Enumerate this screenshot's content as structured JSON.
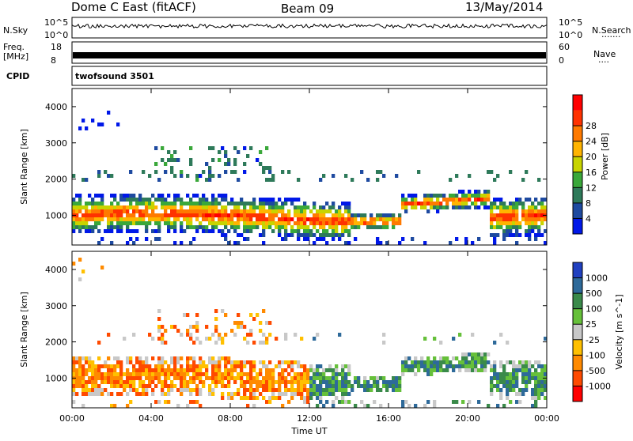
{
  "header": {
    "station": "Dome C East (fitACF)",
    "beam": "Beam 09",
    "date": "13/May/2014"
  },
  "strips": {
    "nsky_label": "N.Sky",
    "nsky_ticks": [
      "10^5",
      "10^0"
    ],
    "nsearch_label": "N.Search",
    "nsearch_ticks": [
      "10^5",
      "10^0"
    ],
    "freq_label": "Freq.",
    "freq_unit": "[MHz]",
    "freq_ticks": [
      "18",
      "8"
    ],
    "nave_label": "Nave",
    "nave_ticks": [
      "60",
      "0"
    ],
    "cpid_label": "CPID",
    "cpid_value": "twofsound 3501"
  },
  "chart_data": [
    {
      "type": "heatmap",
      "name_panel": "power",
      "ylabel": "Slant Range [km]",
      "xlabel": "Time UT",
      "x_ticks": [
        "00:00",
        "04:00",
        "08:00",
        "12:00",
        "16:00",
        "20:00",
        "00:00"
      ],
      "x_range_hours": [
        0,
        24
      ],
      "ylim": [
        180,
        4500
      ],
      "y_ticks": [
        1000,
        2000,
        3000,
        4000
      ],
      "colorbar": {
        "label": "Power [dB]",
        "ticks": [
          "4",
          "8",
          "12",
          "16",
          "20",
          "24",
          "28"
        ],
        "colors": [
          "#0018e8",
          "#1e4aa0",
          "#2e7a5a",
          "#3aa83a",
          "#c8d400",
          "#ffb400",
          "#ff7a00",
          "#ff3200",
          "#ff0000"
        ]
      },
      "features": [
        {
          "desc": "main echo band",
          "t_start": 0,
          "t_end": 24,
          "range_center_km": 1000,
          "level": "28+"
        },
        {
          "desc": "half-hop scatter",
          "t_start": 4,
          "t_end": 10,
          "range_center_km": 2500,
          "level": "16-24"
        }
      ]
    },
    {
      "type": "heatmap",
      "name_panel": "velocity",
      "ylabel": "Slant Range [km]",
      "xlabel": "Time UT",
      "x_ticks": [
        "00:00",
        "04:00",
        "08:00",
        "12:00",
        "16:00",
        "20:00",
        "00:00"
      ],
      "x_range_hours": [
        0,
        24
      ],
      "ylim": [
        180,
        4500
      ],
      "y_ticks": [
        1000,
        2000,
        3000,
        4000
      ],
      "colorbar": {
        "label": "Velocity [m s^-1]",
        "ticks": [
          "1000",
          "500",
          "100",
          "25",
          "-25",
          "-100",
          "-500",
          "-1000"
        ],
        "colors": [
          "#2040c0",
          "#2e6a9a",
          "#3a8a4a",
          "#66c03a",
          "#c8c8c8",
          "#ffc000",
          "#ff8a00",
          "#ff4a00",
          "#ff0000"
        ]
      },
      "features": [
        {
          "desc": "negative velocity echoes",
          "t_start": 0,
          "t_end": 12,
          "range_center_km": 1000,
          "level": "-100 to -500"
        },
        {
          "desc": "positive velocity echoes",
          "t_start": 12,
          "t_end": 24,
          "range_center_km": 1100,
          "level": "100 to 500"
        }
      ]
    }
  ]
}
